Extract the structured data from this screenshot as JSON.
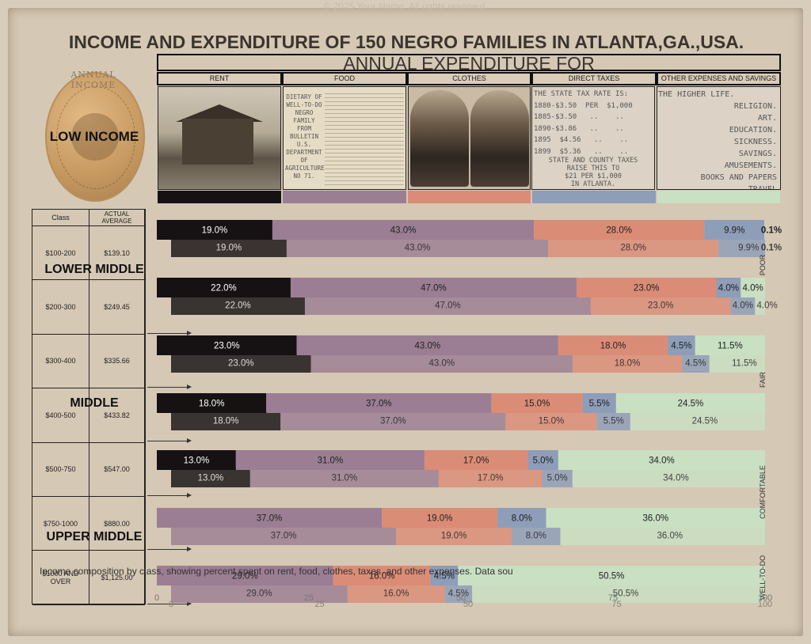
{
  "watermark": "© 2025 Your Name. All rights reserved.",
  "title": "INCOME AND EXPENDITURE OF 150 NEGRO FAMILIES IN ATLANTA,GA.,USA.",
  "expenditure_title": "ANNUAL EXPENDITURE FOR",
  "income_logo": "ANNUAL INCOME",
  "low_income_label": "LOW INCOME",
  "categories": [
    {
      "label": "RENT",
      "color": "#161214"
    },
    {
      "label": "FOOD",
      "color": "#9b7e93"
    },
    {
      "label": "CLOTHES",
      "color": "#db8c76"
    },
    {
      "label": "DIRECT TAXES",
      "color": "#8e9db8"
    },
    {
      "label": "OTHER EXPENSES AND SAVINGS",
      "color": "#c9e0c3"
    }
  ],
  "food_doc_text": [
    "DIETARY OF",
    "WELL-TO-DO",
    "NEGRO",
    "FAMILY",
    "FROM",
    "BULLETIN",
    "U.S.",
    "DEPARTMENT",
    "OF",
    "AGRICULTURE",
    "NO 71."
  ],
  "tax_text": [
    "THE STATE TAX RATE IS:",
    "1880-$3.50  PER  $1,000",
    "1885-$3.50   ..    ..",
    "1890-$3.86   ..    ..",
    "1895  $4.56   ..    ..",
    "1899  $5.36   ..    .."
  ],
  "tax_note": [
    "STATE AND COUNTY TAXES",
    "RAISE THIS TO",
    "$21 PER $1,000",
    "IN ATLANTA."
  ],
  "other_text": [
    "THE HIGHER LIFE.",
    "RELIGION.",
    "ART.",
    "EDUCATION.",
    "SICKNESS.",
    "SAVINGS.",
    "AMUSEMENTS.",
    "BOOKS AND PAPERS",
    "TRAVEL"
  ],
  "table": {
    "headers": [
      "Class",
      "ACTUAL AVERAGE"
    ],
    "rows": [
      {
        "class": "$100-200",
        "average": "$139.10"
      },
      {
        "class": "$200-300",
        "average": "$249.45"
      },
      {
        "class": "$300-400",
        "average": "$335.66"
      },
      {
        "class": "$400-500",
        "average": "$433.82"
      },
      {
        "class": "$500-750",
        "average": "$547.00"
      },
      {
        "class": "$750-1000",
        "average": "$880.00"
      },
      {
        "class": "$1000 AND OVER",
        "average": "$1,125.00"
      }
    ]
  },
  "class_groups": [
    "LOWER MIDDLE",
    "MIDDLE",
    "UPPER MIDDLE"
  ],
  "side_labels": [
    "POOR",
    "FAIR",
    "COMFORTABLE",
    "WELL-TO-DO"
  ],
  "caption": "Income composition by class, showing percent spent on rent, food, clothes, taxes, and other expenses. Data sou",
  "chart_data": {
    "type": "bar",
    "orientation": "horizontal",
    "stacked": true,
    "categories": [
      "$100-200",
      "$200-300",
      "$300-400",
      "$400-500",
      "$500-750",
      "$750-1000",
      "$1000 AND OVER"
    ],
    "series": [
      {
        "name": "RENT",
        "values": [
          19.0,
          22.0,
          23.0,
          18.0,
          13.0,
          0,
          0
        ]
      },
      {
        "name": "FOOD",
        "values": [
          43.0,
          47.0,
          43.0,
          37.0,
          31.0,
          37.0,
          29.0
        ]
      },
      {
        "name": "CLOTHES",
        "values": [
          28.0,
          23.0,
          18.0,
          15.0,
          17.0,
          19.0,
          16.0
        ]
      },
      {
        "name": "DIRECT TAXES",
        "values": [
          9.9,
          4.0,
          4.5,
          5.5,
          5.0,
          8.0,
          4.5
        ]
      },
      {
        "name": "OTHER EXPENSES AND SAVINGS",
        "values": [
          0.1,
          4.0,
          11.5,
          24.5,
          34.0,
          36.0,
          50.5
        ]
      }
    ],
    "value_labels": [
      [
        "19.0%",
        "43.0%",
        "28.0%",
        "9.9%",
        "0.1%"
      ],
      [
        "22.0%",
        "47.0%",
        "23.0%",
        "4.0%",
        "4.0%"
      ],
      [
        "23.0%",
        "43.0%",
        "18.0%",
        "4.5%",
        "11.5%"
      ],
      [
        "18.0%",
        "37.0%",
        "15.0%",
        "5.5%",
        "24.5%"
      ],
      [
        "13.0%",
        "31.0%",
        "17.0%",
        "5.0%",
        "34.0%"
      ],
      [
        "",
        "37.0%",
        "19.0%",
        "8.0%",
        "36.0%"
      ],
      [
        "",
        "29.0%",
        "16.0%",
        "4.5%",
        "50.5%"
      ]
    ],
    "xlim": [
      0,
      100
    ],
    "xticks": [
      "0",
      "25",
      "50",
      "75",
      "100"
    ]
  }
}
